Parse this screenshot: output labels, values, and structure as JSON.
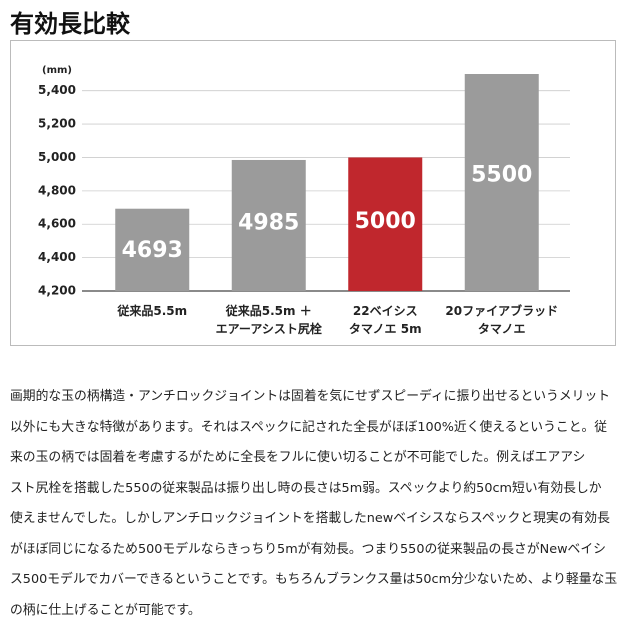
{
  "heading": "有効長比較",
  "chart_data": {
    "type": "bar",
    "unit_label": "(mm)",
    "categories": [
      "従来品5.5m",
      "従来品5.5m ＋\nエアーアシスト尻栓",
      "22ベイシス\nタマノエ 5m",
      "20ファイアブラッド\nタマノエ"
    ],
    "values": [
      4693,
      4985,
      5000,
      5500
    ],
    "colors": [
      "#9b9b9b",
      "#9b9b9b",
      "#c0272d",
      "#9b9b9b"
    ],
    "ylim": [
      4200,
      5500
    ],
    "yticks": [
      {
        "value": 4200,
        "label": "4,200"
      },
      {
        "value": 4400,
        "label": "4,400"
      },
      {
        "value": 4600,
        "label": "4,600"
      },
      {
        "value": 4800,
        "label": "4,800"
      },
      {
        "value": 5000,
        "label": "5,000"
      },
      {
        "value": 5200,
        "label": "5,200"
      },
      {
        "value": 5400,
        "label": "5,400"
      }
    ],
    "grid": true
  },
  "paragraph": {
    "lines": [
      "画期的な玉の柄構造・アンチロックジョイントは固着を気にせずスピーディに振り出せるというメリット",
      "以外にも大きな特徴があります。それはスペックに記された全長がほぼ100%近く使えるということ。従",
      "来の玉の柄では固着を考慮するがために全長をフルに使い切ることが不可能でした。例えばエアアシ",
      "スト尻栓を搭載した550の従来製品は振り出し時の長さは5m弱。スペックより約50cm短い有効長しか",
      "使えませんでした。しかしアンチロックジョイントを搭載したnewベイシスならスペックと現実の有効長",
      "がほぼ同じになるため500モデルならきっちり5mが有効長。つまり550の従来製品の長さがNewベイシ",
      "ス500モデルでカバーできるということです。もちろんブランクス量は50cm分少ないため、より軽量な玉",
      "の柄に仕上げることが可能です。"
    ]
  }
}
